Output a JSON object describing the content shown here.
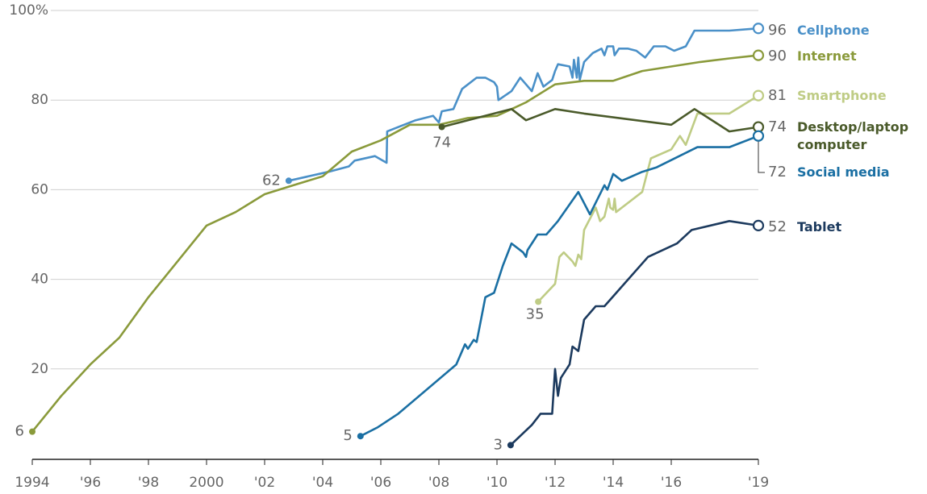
{
  "chart_data": {
    "type": "line",
    "xlim": [
      1994,
      2019
    ],
    "ylim": [
      0,
      100
    ],
    "xticks": [
      1994,
      {
        "value": 1996,
        "label": "'96"
      },
      {
        "value": 1998,
        "label": "'98"
      },
      2000,
      {
        "value": 2002,
        "label": "'02"
      },
      {
        "value": 2004,
        "label": "'04"
      },
      {
        "value": 2006,
        "label": "'06"
      },
      {
        "value": 2008,
        "label": "'08"
      },
      {
        "value": 2010,
        "label": "'10"
      },
      {
        "value": 2012,
        "label": "'12"
      },
      {
        "value": 2014,
        "label": "'14"
      },
      {
        "value": 2016,
        "label": "'16"
      },
      {
        "value": 2019,
        "label": "'19"
      }
    ],
    "yticks": [
      20,
      40,
      60,
      80,
      {
        "value": 100,
        "label": "100%"
      }
    ],
    "grid": true,
    "series": [
      {
        "name": "Cellphone",
        "color": "#4a90c8",
        "x": [
          2002.83,
          2004.2,
          2004.9,
          2005.1,
          2005.8,
          2006.2,
          2006.22,
          2006.8,
          2007.2,
          2007.8,
          2008.0,
          2008.1,
          2008.5,
          2008.8,
          2009.3,
          2009.6,
          2009.9,
          2010.0,
          2010.05,
          2010.5,
          2010.8,
          2011.0,
          2011.2,
          2011.4,
          2011.6,
          2011.9,
          2012.0,
          2012.1,
          2012.5,
          2012.6,
          2012.65,
          2012.75,
          2012.8,
          2012.85,
          2013.0,
          2013.3,
          2013.6,
          2013.7,
          2013.8,
          2014.0,
          2014.05,
          2014.2,
          2014.5,
          2014.8,
          2015.1,
          2015.4,
          2015.8,
          2016.1,
          2016.5,
          2016.8,
          2018.0,
          2019.0
        ],
        "values": [
          62,
          64,
          65.2,
          66.5,
          67.5,
          66,
          73,
          74.5,
          75.5,
          76.5,
          75,
          77.5,
          78,
          82.5,
          85,
          85,
          84,
          83,
          80,
          82,
          85,
          83.5,
          82,
          86,
          83,
          84.5,
          86.5,
          88,
          87.5,
          85,
          89,
          85,
          89.5,
          84.5,
          88.5,
          90.5,
          91.5,
          90,
          92,
          92,
          90,
          91.5,
          91.5,
          91,
          89.5,
          92,
          92,
          91,
          92,
          95.5,
          95.5,
          96
        ]
      },
      {
        "name": "Internet",
        "color": "#8a9a3b",
        "x": [
          1994,
          1995,
          1996,
          1997,
          1998,
          1999,
          2000,
          2001,
          2002,
          2003,
          2004,
          2005,
          2006,
          2007,
          2008,
          2009,
          2010,
          2011,
          2012,
          2013,
          2014,
          2015,
          2016,
          2017,
          2018,
          2019
        ],
        "values": [
          6,
          14,
          21,
          27,
          36,
          44,
          52,
          55,
          59,
          61,
          63,
          68.5,
          71,
          74.5,
          74.5,
          76,
          76.5,
          79.5,
          83.5,
          84.3,
          84.3,
          86.5,
          87.5,
          88.5,
          89.3,
          90
        ]
      },
      {
        "name": "Smartphone",
        "color": "#bfcc85",
        "x": [
          2011.42,
          2012.0,
          2012.15,
          2012.3,
          2012.6,
          2012.7,
          2012.8,
          2012.9,
          2013.0,
          2013.4,
          2013.55,
          2013.7,
          2013.85,
          2013.9,
          2014.0,
          2014.05,
          2014.1,
          2015.0,
          2015.3,
          2016.0,
          2016.3,
          2016.5,
          2016.9,
          2018.0,
          2019.0
        ],
        "values": [
          35,
          39,
          45,
          46,
          44,
          43,
          45.5,
          44.5,
          51,
          56,
          53,
          54,
          58,
          56,
          55.5,
          58,
          55,
          59.5,
          67,
          69,
          72,
          70,
          77,
          77,
          81
        ]
      },
      {
        "name": "Desktop/laptop computer",
        "color": "#4a5a2a",
        "x": [
          2008.1,
          2010.5,
          2011.0,
          2012.0,
          2013.0,
          2016.0,
          2016.8,
          2018.0,
          2019.0
        ],
        "values": [
          74,
          78,
          75.5,
          78,
          77,
          74.5,
          78,
          73,
          74
        ]
      },
      {
        "name": "Social media",
        "color": "#1a6fa3",
        "x": [
          2005.3,
          2005.9,
          2006.6,
          2008.6,
          2008.9,
          2009.0,
          2009.2,
          2009.3,
          2009.6,
          2009.9,
          2010.2,
          2010.5,
          2010.9,
          2011.0,
          2011.05,
          2011.4,
          2011.7,
          2012.1,
          2012.8,
          2013.2,
          2013.7,
          2013.8,
          2014.0,
          2014.3,
          2015.0,
          2015.5,
          2016.9,
          2018.0,
          2019.0
        ],
        "values": [
          5,
          7,
          10,
          21,
          25.5,
          24.5,
          26.5,
          26,
          36,
          37,
          43,
          48,
          46,
          45,
          46.5,
          50,
          50,
          53,
          59.5,
          54.5,
          61,
          60,
          63.5,
          62,
          64,
          65,
          69.5,
          69.5,
          72
        ]
      },
      {
        "name": "Tablet",
        "color": "#1c3a5e",
        "x": [
          2010.47,
          2011.2,
          2011.5,
          2011.9,
          2012.0,
          2012.1,
          2012.2,
          2012.5,
          2012.6,
          2012.8,
          2013.0,
          2013.4,
          2013.7,
          2015.2,
          2016.2,
          2016.7,
          2018.0,
          2019.0
        ],
        "values": [
          3,
          7.5,
          10,
          10,
          20,
          14,
          18,
          21,
          25,
          24,
          31,
          34,
          34,
          45,
          48,
          51,
          53,
          52
        ]
      }
    ]
  }
}
